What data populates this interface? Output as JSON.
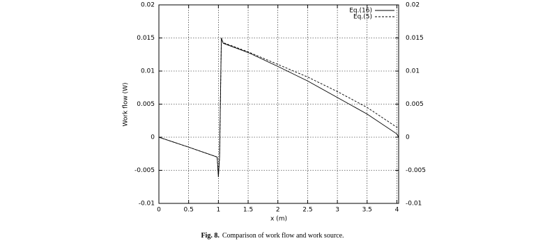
{
  "chart_data": {
    "type": "line",
    "xlabel": "x (m)",
    "ylabel": "Work flow (W)",
    "caption": {
      "label": "Fig. 8.",
      "text": "Comparison of work flow and work source."
    },
    "x": [
      0,
      0.5,
      0.98,
      1.0,
      1.02,
      1.05,
      1.08,
      1.5,
      2,
      2.5,
      3,
      3.5,
      4,
      4.03
    ],
    "series": [
      {
        "name": "Eq.(16)",
        "color": "#000000",
        "dash": "solid",
        "values": [
          0,
          -0.0015,
          -0.003,
          -0.006,
          -0.003,
          0.015,
          0.0142,
          0.0128,
          0.0107,
          0.0085,
          0.006,
          0.0035,
          0.0005,
          0
        ]
      },
      {
        "name": "Eq.(5)",
        "color": "#000000",
        "dash": "dashed",
        "values": [
          0,
          -0.0015,
          -0.003,
          -0.006,
          -0.003,
          0.015,
          0.0143,
          0.0129,
          0.011,
          0.0091,
          0.0069,
          0.0045,
          0.0015,
          0.0018
        ]
      }
    ],
    "xlim": [
      0,
      4.03
    ],
    "xticks": [
      0,
      0.5,
      1,
      1.5,
      2,
      2.5,
      3,
      3.5,
      4
    ],
    "ylim": [
      -0.01,
      0.02
    ],
    "yticks": [
      -0.01,
      -0.005,
      0,
      0.005,
      0.01,
      0.015,
      0.02
    ],
    "y2lim": [
      -0.01,
      0.02
    ],
    "y2ticks": [
      -0.01,
      -0.005,
      0,
      0.005,
      0.01,
      0.015,
      0.02
    ],
    "grid": true,
    "legend": "top-right"
  }
}
